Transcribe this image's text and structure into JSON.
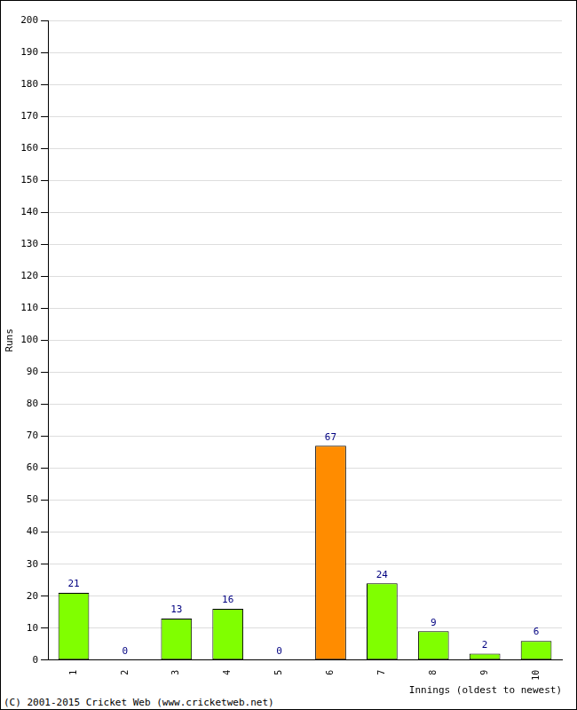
{
  "chart_data": {
    "type": "bar",
    "categories": [
      "1",
      "2",
      "3",
      "4",
      "5",
      "6",
      "7",
      "8",
      "9",
      "10"
    ],
    "values": [
      21,
      0,
      13,
      16,
      0,
      67,
      24,
      9,
      2,
      6
    ],
    "colors": [
      "#80ff00",
      "#80ff00",
      "#80ff00",
      "#80ff00",
      "#80ff00",
      "#ff8c00",
      "#80ff00",
      "#80ff00",
      "#80ff00",
      "#80ff00"
    ],
    "x_label": "Innings (oldest to newest)",
    "y_label": "Runs",
    "ylim": [
      0,
      200
    ],
    "yticks": [
      0,
      10,
      20,
      30,
      40,
      50,
      60,
      70,
      80,
      90,
      100,
      110,
      120,
      130,
      140,
      150,
      160,
      170,
      180,
      190,
      200
    ],
    "grid": true,
    "data_labels": true,
    "annotations": [
      "(C) 2001-2015 Cricket Web (www.cricketweb.net)"
    ]
  }
}
